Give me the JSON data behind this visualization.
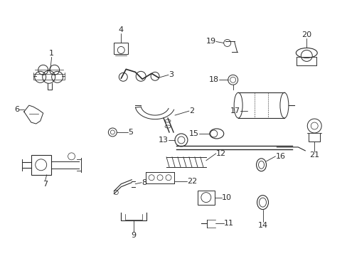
{
  "background_color": "#ffffff",
  "fig_width": 4.89,
  "fig_height": 3.6,
  "dpi": 100,
  "image_b64": ""
}
